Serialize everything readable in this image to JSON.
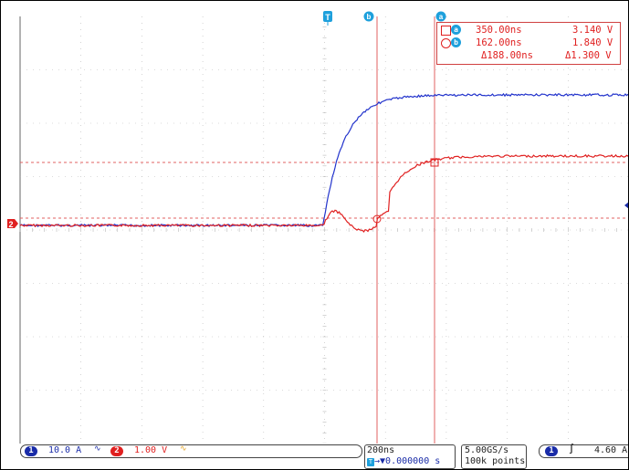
{
  "cursors": {
    "a": {
      "label": "a",
      "time": "350.00ns",
      "voltage": "3.140 V"
    },
    "b": {
      "label": "b",
      "time": "162.00ns",
      "voltage": "1.840 V"
    },
    "delta_time": "Δ188.00ns",
    "delta_voltage": "Δ1.300 V"
  },
  "markers": {
    "trigger": "T",
    "cursor_a": "a",
    "cursor_b": "b",
    "channel2": "2"
  },
  "channels": {
    "ch1": {
      "number": "1",
      "scale": "10.0 A",
      "coupling_icon": "bandwidth-limit-icon",
      "color": "#2233cc"
    },
    "ch2": {
      "number": "2",
      "scale": "1.00 V",
      "coupling_icon": "bandwidth-limit-icon",
      "color": "#e02020"
    }
  },
  "timebase": {
    "scale": "200ns",
    "delay": "0.000000 s"
  },
  "acquisition": {
    "sample_rate": "5.00GS/s",
    "record_length": "100k points"
  },
  "trigger": {
    "source": "1",
    "slope": "rising",
    "level": "4.60 A"
  },
  "colors": {
    "grid": "#b8b8b8",
    "cursor": "#e06060",
    "cursor_badge": "#1ea0dc",
    "ch1": "#2233cc",
    "ch2": "#e02020"
  }
}
